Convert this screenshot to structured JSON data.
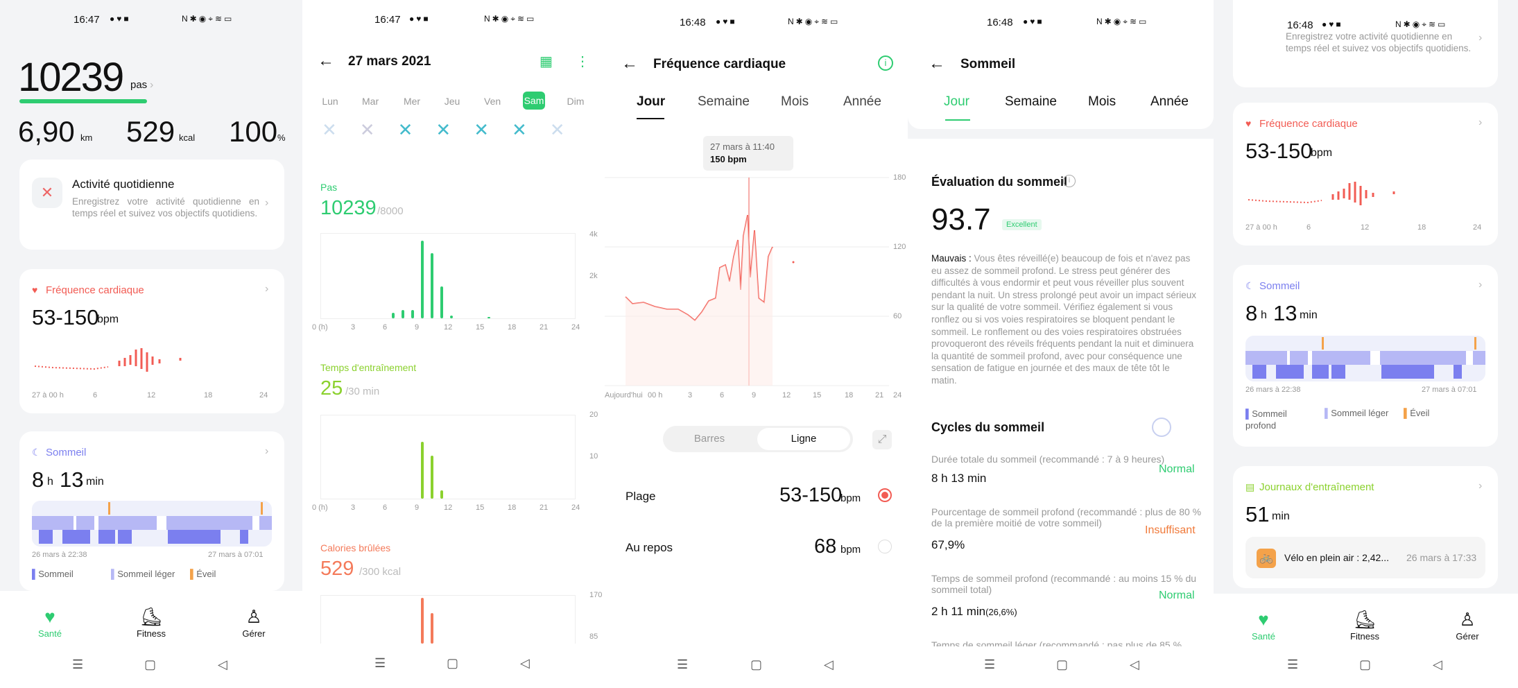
{
  "p1": {
    "time": "16:47",
    "steps": "10239",
    "steps_unit": "pas",
    "km": "6,90",
    "km_unit": "km",
    "kcal": "529",
    "kcal_unit": "kcal",
    "pct": "100",
    "pct_unit": "%",
    "daily_title": "Activité quotidienne",
    "daily_desc": "Enregistrez votre activité quotidienne en temps réel et suivez vos objectifs quotidiens.",
    "hr_title": "Fréquence cardiaque",
    "hr_value": "53-150",
    "hr_unit": "bpm",
    "hr_ticks": [
      "27 à 00 h",
      "6",
      "12",
      "18",
      "24"
    ],
    "sleep_title": "Sommeil",
    "sleep_h": "8",
    "sleep_h_unit": "h",
    "sleep_m": "13",
    "sleep_m_unit": "min",
    "sleep_start": "26 mars à 22:38",
    "sleep_end": "27 mars à 07:01",
    "legend": [
      "Sommeil",
      "Sommeil léger",
      "Éveil"
    ],
    "nav": [
      "Santé",
      "Fitness",
      "Gérer"
    ]
  },
  "p2": {
    "time": "16:47",
    "title": "27 mars 2021",
    "days": [
      "Lun",
      "Mar",
      "Mer",
      "Jeu",
      "Ven",
      "Sam",
      "Dim"
    ],
    "steps_label": "Pas",
    "steps_value": "10239",
    "steps_goal": "/8000",
    "steps_y": [
      "4k",
      "2k"
    ],
    "x_ticks": [
      "0 (h)",
      "3",
      "6",
      "9",
      "12",
      "15",
      "18",
      "21",
      "24"
    ],
    "training_label": "Temps d'entraînement",
    "training_value": "25",
    "training_goal": "/30 min",
    "training_y": [
      "20",
      "10"
    ],
    "cal_label": "Calories brûlées",
    "cal_value": "529",
    "cal_goal": "/300 kcal",
    "cal_y": [
      "170",
      "85"
    ]
  },
  "p3": {
    "time": "16:48",
    "title": "Fréquence cardiaque",
    "tabs": [
      "Jour",
      "Semaine",
      "Mois",
      "Année"
    ],
    "tooltip_date": "27 mars à 11:40",
    "tooltip_val": "150 bpm",
    "y_ticks": [
      "180",
      "120",
      "60"
    ],
    "x_ticks": [
      "Aujourd'hui",
      "00 h",
      "3",
      "6",
      "9",
      "12",
      "15",
      "18",
      "21",
      "24"
    ],
    "toggle": [
      "Barres",
      "Ligne"
    ],
    "range_label": "Plage",
    "range_value": "53-150",
    "range_unit": "bpm",
    "rest_label": "Au repos",
    "rest_value": "68",
    "rest_unit": "bpm"
  },
  "p4": {
    "time": "16:48",
    "title": "Sommeil",
    "tabs": [
      "Jour",
      "Semaine",
      "Mois",
      "Année"
    ],
    "eval_title": "Évaluation du sommeil",
    "score": "93.7",
    "badge": "Excellent",
    "desc_label": "Mauvais :",
    "desc": "Vous êtes réveillé(e) beaucoup de fois et n'avez pas eu assez de sommeil profond. Le stress peut générer des difficultés à vous endormir et peut vous réveiller plus souvent pendant la nuit. Un stress prolongé peut avoir un impact sérieux sur la qualité de votre sommeil. Vérifiez également si vous ronflez ou si vos voies respiratoires se bloquent pendant le sommeil. Le ronflement ou des voies respiratoires obstruées provoqueront des réveils fréquents pendant la nuit et diminuera la quantité de sommeil profond, avec pour conséquence une sensation de fatigue en journée et des maux de tête tôt le matin.",
    "cycles_title": "Cycles du sommeil",
    "rows": [
      {
        "label": "Durée totale du sommeil (recommandé : 7 à 9 heures)",
        "value": "8 h 13 min",
        "status": "Normal"
      },
      {
        "label": "Pourcentage de sommeil profond (recommandé : plus de 80 % de la première moitié de votre sommeil)",
        "value": "67,9%",
        "status": "Insuffisant"
      },
      {
        "label": "Temps de sommeil profond (recommandé : au moins 15 % du sommeil total)",
        "value": "2 h 11 min",
        "value_sub": "(26,6%)",
        "status": "Normal"
      },
      {
        "label": "Temps de sommeil léger (recommandé : pas plus de 85 %",
        "value": "",
        "status": ""
      }
    ]
  },
  "p5": {
    "time": "16:48",
    "top_text": "Enregistrez votre activité quotidienne en temps réel et suivez vos objectifs quotidiens.",
    "hr_title": "Fréquence cardiaque",
    "hr_value": "53-150",
    "hr_unit": "bpm",
    "hr_ticks": [
      "27 à 00 h",
      "6",
      "12",
      "18",
      "24"
    ],
    "sleep_title": "Sommeil",
    "sleep_h": "8",
    "sleep_h_unit": "h",
    "sleep_m": "13",
    "sleep_m_unit": "min",
    "sleep_start": "26 mars à 22:38",
    "sleep_end": "27 mars à 07:01",
    "legend": [
      "Sommeil profond",
      "Sommeil léger",
      "Éveil"
    ],
    "journal_title": "Journaux d'entraînement",
    "journal_value": "51",
    "journal_unit": "min",
    "workout": "Vélo en plein air : 2,42...",
    "workout_date": "26 mars à 17:33",
    "nav": [
      "Santé",
      "Fitness",
      "Gérer"
    ]
  },
  "colors": {
    "green": "#2ecc71",
    "red": "#f25c54",
    "purple": "#7b7fef",
    "lightpurple": "#b6b8f5",
    "orange": "#f4a24a",
    "lime": "#8bd12e"
  }
}
